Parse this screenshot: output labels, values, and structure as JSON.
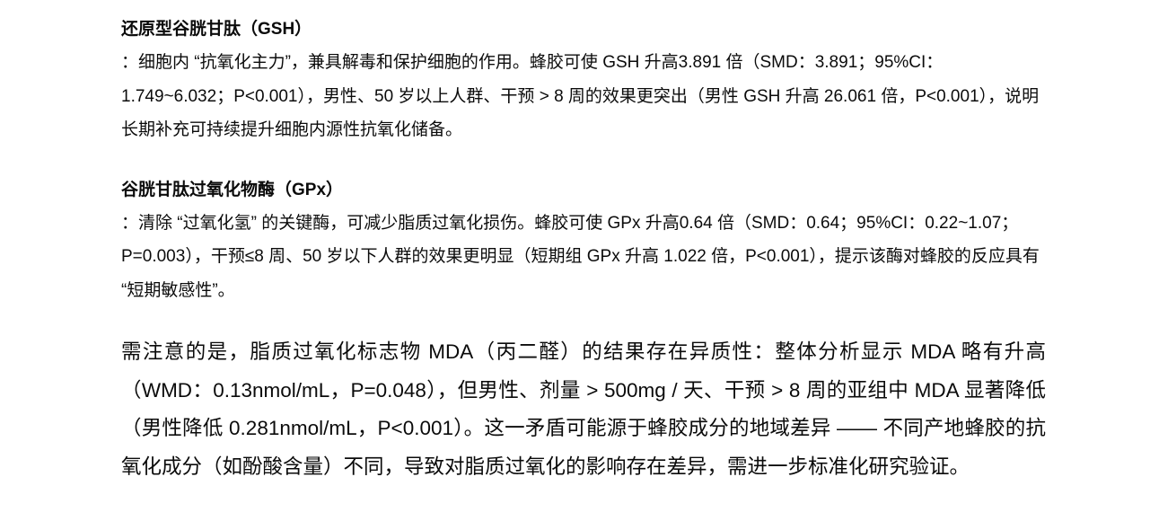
{
  "document": {
    "sections": [
      {
        "heading": "还原型谷胱甘肽（GSH）",
        "body": "：细胞内 “抗氧化主力”，兼具解毒和保护细胞的作用。蜂胶可使 GSH 升高3.891 倍（SMD：3.891；95%CI：1.749~6.032；P<0.001），男性、50 岁以上人群、干预 > 8 周的效果更突出（男性 GSH 升高 26.061 倍，P<0.001），说明长期补充可持续提升细胞内源性抗氧化储备。"
      },
      {
        "heading": "谷胱甘肽过氧化物酶（GPx）",
        "body": "：清除 “过氧化氢” 的关键酶，可减少脂质过氧化损伤。蜂胶可使 GPx 升高0.64 倍（SMD：0.64；95%CI：0.22~1.07；P=0.003），干预≤8 周、50 岁以下人群的效果更明显（短期组 GPx 升高 1.022 倍，P<0.001），提示该酶对蜂胶的反应具有 “短期敏感性”。"
      }
    ],
    "note": "需注意的是，脂质过氧化标志物 MDA（丙二醛）的结果存在异质性：整体分析显示 MDA 略有升高（WMD：0.13nmol/mL，P=0.048），但男性、剂量 > 500mg / 天、干预 > 8 周的亚组中 MDA 显著降低（男性降低 0.281nmol/mL，P<0.001）。这一矛盾可能源于蜂胶成分的地域差异 —— 不同产地蜂胶的抗氧化成分（如酚酸含量）不同，导致对脂质过氧化的影响存在差异，需进一步标准化研究验证。"
  }
}
